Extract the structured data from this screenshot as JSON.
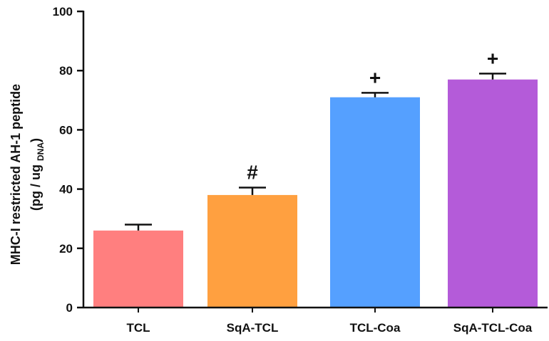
{
  "chart_data": {
    "type": "bar",
    "categories": [
      "TCL",
      "SqA-TCL",
      "TCL-Coa",
      "SqA-TCL-Coa"
    ],
    "values": [
      26,
      38,
      71,
      77
    ],
    "errors": [
      2,
      2.5,
      1.5,
      2
    ],
    "annotations": [
      "",
      "#",
      "+",
      "+"
    ],
    "colors": [
      "#FF7F7F",
      "#FFA040",
      "#55A0FF",
      "#B45BD9"
    ],
    "ylabel_line1": "MHC-I restricted AH-1 peptide",
    "ylabel_line2_main": "(pg / ug ",
    "ylabel_line2_sub": "DNA",
    "ylabel_line2_end": ")",
    "ylim": [
      0,
      100
    ],
    "yticks": [
      "0",
      "20",
      "40",
      "60",
      "80",
      "100"
    ],
    "grid": false
  }
}
